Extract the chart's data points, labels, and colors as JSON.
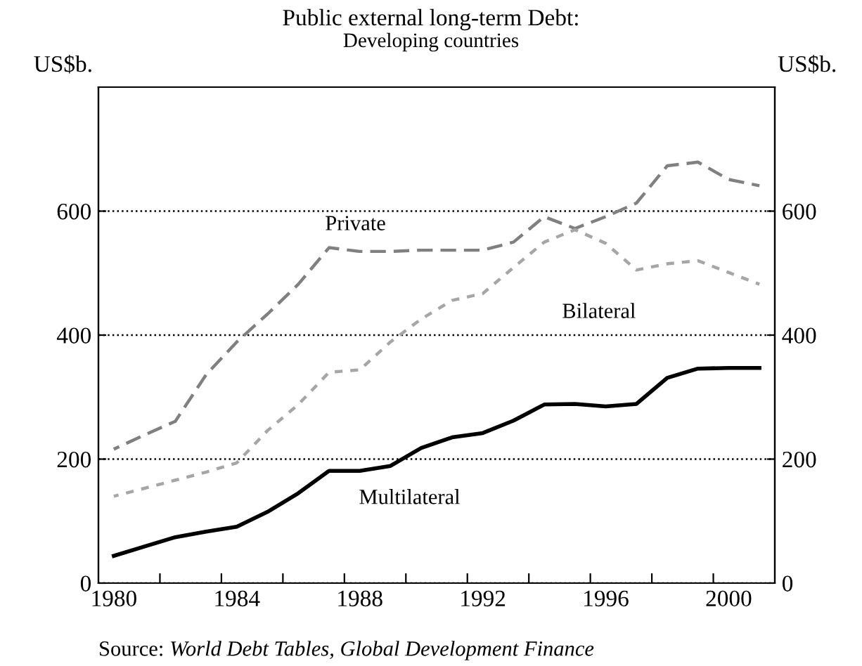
{
  "chart_data": {
    "type": "line",
    "title": "Public external long-term Debt:",
    "subtitle": "Developing countries",
    "ylabel": "US$b.",
    "y2label": "US$b.",
    "x": [
      1980,
      1981,
      1982,
      1983,
      1984,
      1985,
      1986,
      1987,
      1988,
      1989,
      1990,
      1991,
      1992,
      1993,
      1994,
      1995,
      1996,
      1997,
      1998,
      1999,
      2000,
      2001
    ],
    "series": [
      {
        "name": "Private",
        "color": "#808080",
        "line_style": "dashed",
        "values": [
          216,
          239,
          261,
          336,
          389,
          434,
          482,
          541,
          535,
          535,
          537,
          537,
          537,
          550,
          591,
          572,
          591,
          613,
          673,
          679,
          651,
          641
        ]
      },
      {
        "name": "Bilateral",
        "color": "#a6a6a6",
        "line_style": "dotted",
        "values": [
          140,
          153,
          166,
          179,
          194,
          246,
          288,
          340,
          344,
          389,
          426,
          456,
          467,
          509,
          550,
          570,
          548,
          505,
          515,
          520,
          501,
          482
        ]
      },
      {
        "name": "Multilateral",
        "color": "#000000",
        "line_style": "solid",
        "values": [
          44,
          59,
          74,
          83,
          91,
          115,
          145,
          181,
          181,
          189,
          218,
          235,
          242,
          262,
          288,
          289,
          285,
          289,
          331,
          346,
          347,
          347
        ]
      }
    ],
    "xlim": [
      1979.5,
      2001.5
    ],
    "xticks": [
      1980,
      {
        "value": 1981.5,
        "label": null
      },
      {
        "value": 1983.5,
        "label": null
      },
      1984,
      {
        "value": 1985.5,
        "label": null
      },
      {
        "value": 1987.5,
        "label": null
      },
      1988,
      {
        "value": 1989.5,
        "label": null
      },
      {
        "value": 1991.5,
        "label": null
      },
      1992,
      {
        "value": 1993.5,
        "label": null
      },
      {
        "value": 1995.5,
        "label": null
      },
      1996,
      {
        "value": 1997.5,
        "label": null
      },
      {
        "value": 1999.5,
        "label": null
      },
      2000
    ],
    "ylim": [
      0,
      800
    ],
    "yticks": [
      0,
      200,
      400,
      600
    ],
    "y2lim": [
      0,
      800
    ],
    "y2ticks": [
      0,
      200,
      400,
      600
    ],
    "grid": "y",
    "legend": false,
    "annotations": [
      "Source: World Debt Tables, Global Development Finance"
    ]
  }
}
